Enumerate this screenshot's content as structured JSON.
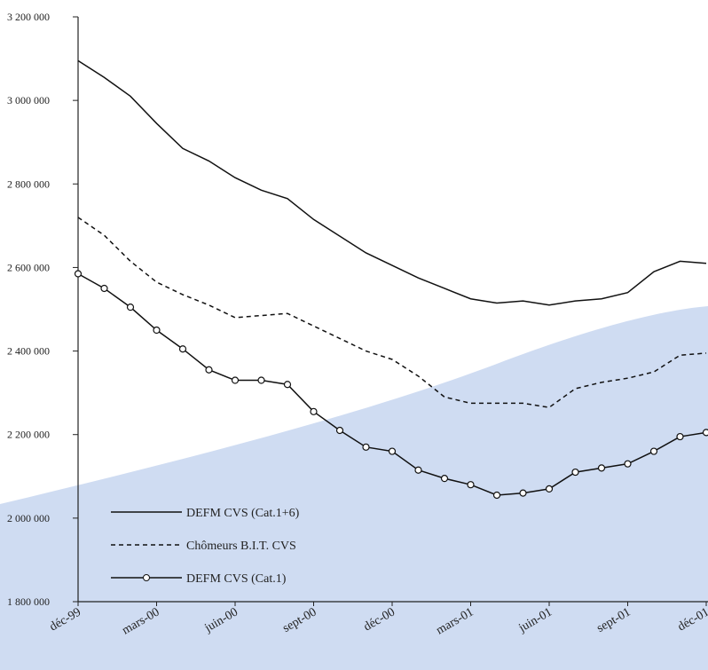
{
  "chart_data": {
    "type": "line",
    "categories": [
      "déc-99",
      null,
      null,
      "mars-00",
      null,
      null,
      "juin-00",
      null,
      null,
      "sept-00",
      null,
      null,
      "déc-00",
      null,
      null,
      "mars-01",
      null,
      null,
      "juin-01",
      null,
      null,
      "sept-01",
      null,
      null,
      "déc-01"
    ],
    "series": [
      {
        "name": "DEFM CVS (Cat.1+6)",
        "color": "#111111",
        "style": "solid",
        "marker": "none",
        "values": [
          3095000,
          3055000,
          3010000,
          2945000,
          2885000,
          2855000,
          2815000,
          2785000,
          2765000,
          2715000,
          2675000,
          2635000,
          2605000,
          2575000,
          2550000,
          2525000,
          2515000,
          2520000,
          2510000,
          2520000,
          2525000,
          2540000,
          2590000,
          2615000,
          2610000
        ]
      },
      {
        "name": "Chômeurs B.I.T. CVS",
        "color": "#111111",
        "style": "dashed",
        "marker": "none",
        "values": [
          2720000,
          2677000,
          2615000,
          2565000,
          2535000,
          2510000,
          2480000,
          2485000,
          2490000,
          2460000,
          2430000,
          2400000,
          2380000,
          2340000,
          2290000,
          2275000,
          2275000,
          2275000,
          2265000,
          2310000,
          2325000,
          2335000,
          2350000,
          2390000,
          2395000
        ]
      },
      {
        "name": "DEFM CVS (Cat.1)",
        "color": "#111111",
        "style": "solid",
        "marker": "circle",
        "values": [
          2585000,
          2550000,
          2505000,
          2450000,
          2405000,
          2355000,
          2330000,
          2330000,
          2320000,
          2255000,
          2210000,
          2170000,
          2160000,
          2115000,
          2095000,
          2080000,
          2055000,
          2060000,
          2070000,
          2110000,
          2120000,
          2130000,
          2160000,
          2195000,
          2205000
        ]
      }
    ],
    "ylim": [
      1800000,
      3200000
    ],
    "yticks": [
      {
        "value": 1800000,
        "label": "1 800 000"
      },
      {
        "value": 2000000,
        "label": "2 000 000"
      },
      {
        "value": 2200000,
        "label": "2 200 000"
      },
      {
        "value": 2400000,
        "label": "2 400 000"
      },
      {
        "value": 2600000,
        "label": "2 600 000"
      },
      {
        "value": 2800000,
        "label": "2 800 000"
      },
      {
        "value": 3000000,
        "label": "3 000 000"
      },
      {
        "value": 3200000,
        "label": "3 200 000"
      }
    ],
    "legend": "lower left"
  }
}
